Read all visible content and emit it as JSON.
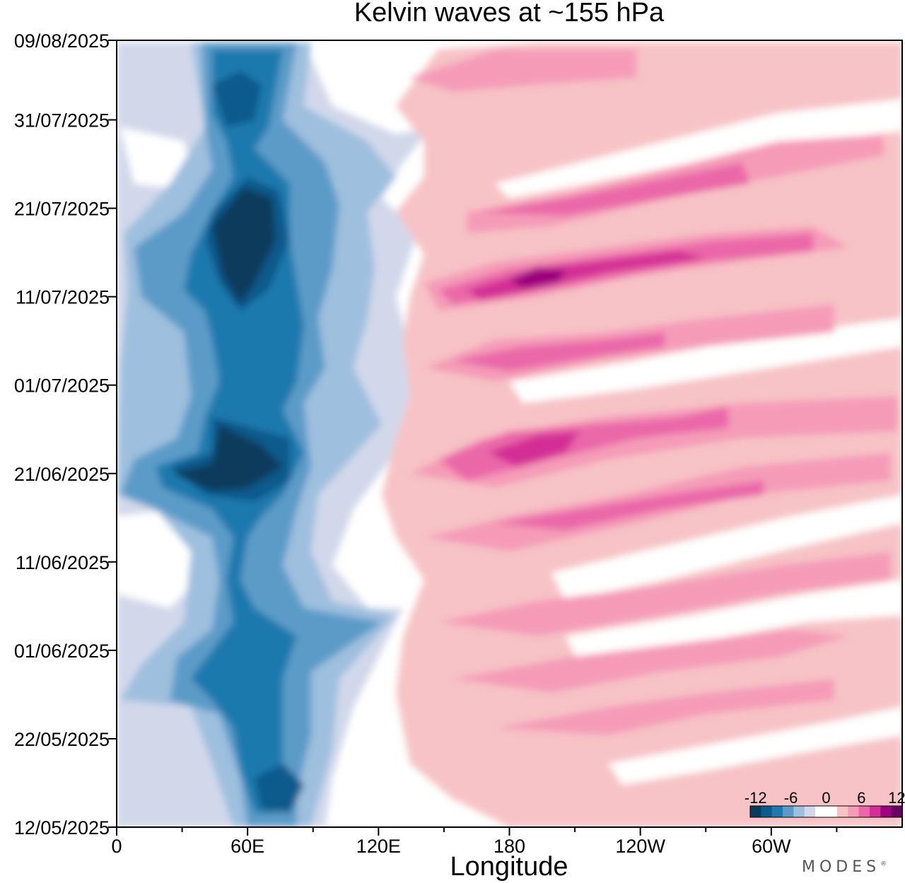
{
  "brand": "MODES",
  "brand_mark": "®",
  "chart_data": {
    "type": "heatmap",
    "title": "Kelvin waves at ~155 hPa",
    "xlabel": "Longitude",
    "ylabel": "",
    "x_ticks": [
      {
        "lon": 0,
        "label": "0"
      },
      {
        "lon": 60,
        "label": "60E"
      },
      {
        "lon": 120,
        "label": "120E"
      },
      {
        "lon": 180,
        "label": "180"
      },
      {
        "lon": 240,
        "label": "120W"
      },
      {
        "lon": 300,
        "label": "60W"
      }
    ],
    "x_minor_ticks": [
      30,
      90,
      150,
      210,
      270,
      330
    ],
    "xlim": [
      0,
      360
    ],
    "y_ticks": [
      {
        "day": 0,
        "label": "12/05/2025"
      },
      {
        "day": 10,
        "label": "22/05/2025"
      },
      {
        "day": 20,
        "label": "01/06/2025"
      },
      {
        "day": 30,
        "label": "11/06/2025"
      },
      {
        "day": 40,
        "label": "21/06/2025"
      },
      {
        "day": 50,
        "label": "01/07/2025"
      },
      {
        "day": 60,
        "label": "11/07/2025"
      },
      {
        "day": 70,
        "label": "21/07/2025"
      },
      {
        "day": 80,
        "label": "31/07/2025"
      },
      {
        "day": 89,
        "label": "09/08/2025"
      }
    ],
    "ylim": [
      0,
      89
    ],
    "colorbar": {
      "levels": [
        -12,
        -10,
        -8,
        -6,
        -4,
        -2,
        0,
        2,
        4,
        6,
        8,
        10,
        12
      ],
      "labels": [
        "-12",
        "-6",
        "0",
        "6",
        "12"
      ],
      "colors": [
        "#0a3a5c",
        "#0d5a8c",
        "#1f79ad",
        "#5b9bc8",
        "#9ebfde",
        "#d2d8ea",
        "#ffffff",
        "#ffffff",
        "#f7c3c6",
        "#f59bb8",
        "#ea68a8",
        "#d32f95",
        "#9c057f",
        "#6b0065"
      ]
    },
    "features": [
      {
        "kind": "negative_band",
        "lon_center": 55,
        "lon_width": 60,
        "value": -10
      },
      {
        "kind": "negative_core",
        "lon": 52,
        "day": 68,
        "value": -12
      },
      {
        "kind": "negative_core",
        "lon": 45,
        "day": 42,
        "value": -12
      },
      {
        "kind": "negative_core",
        "lon": 62,
        "day": 5,
        "value": -11
      },
      {
        "kind": "eastward_positive_stripe",
        "lon_start": 140,
        "lon_end": 320,
        "day_start": 58,
        "day_end": 75,
        "value": 8
      },
      {
        "kind": "eastward_positive_stripe",
        "lon_start": 150,
        "lon_end": 320,
        "day_start": 63,
        "day_end": 68,
        "value": 13
      },
      {
        "kind": "eastward_positive_stripe",
        "lon_start": 140,
        "lon_end": 330,
        "day_start": 40,
        "day_end": 52,
        "value": 8
      },
      {
        "kind": "eastward_positive_stripe",
        "lon_start": 140,
        "lon_end": 340,
        "day_start": 28,
        "day_end": 42,
        "value": 6
      },
      {
        "kind": "eastward_positive_stripe",
        "lon_start": 140,
        "lon_end": 340,
        "day_start": 12,
        "day_end": 27,
        "value": 5
      }
    ]
  }
}
